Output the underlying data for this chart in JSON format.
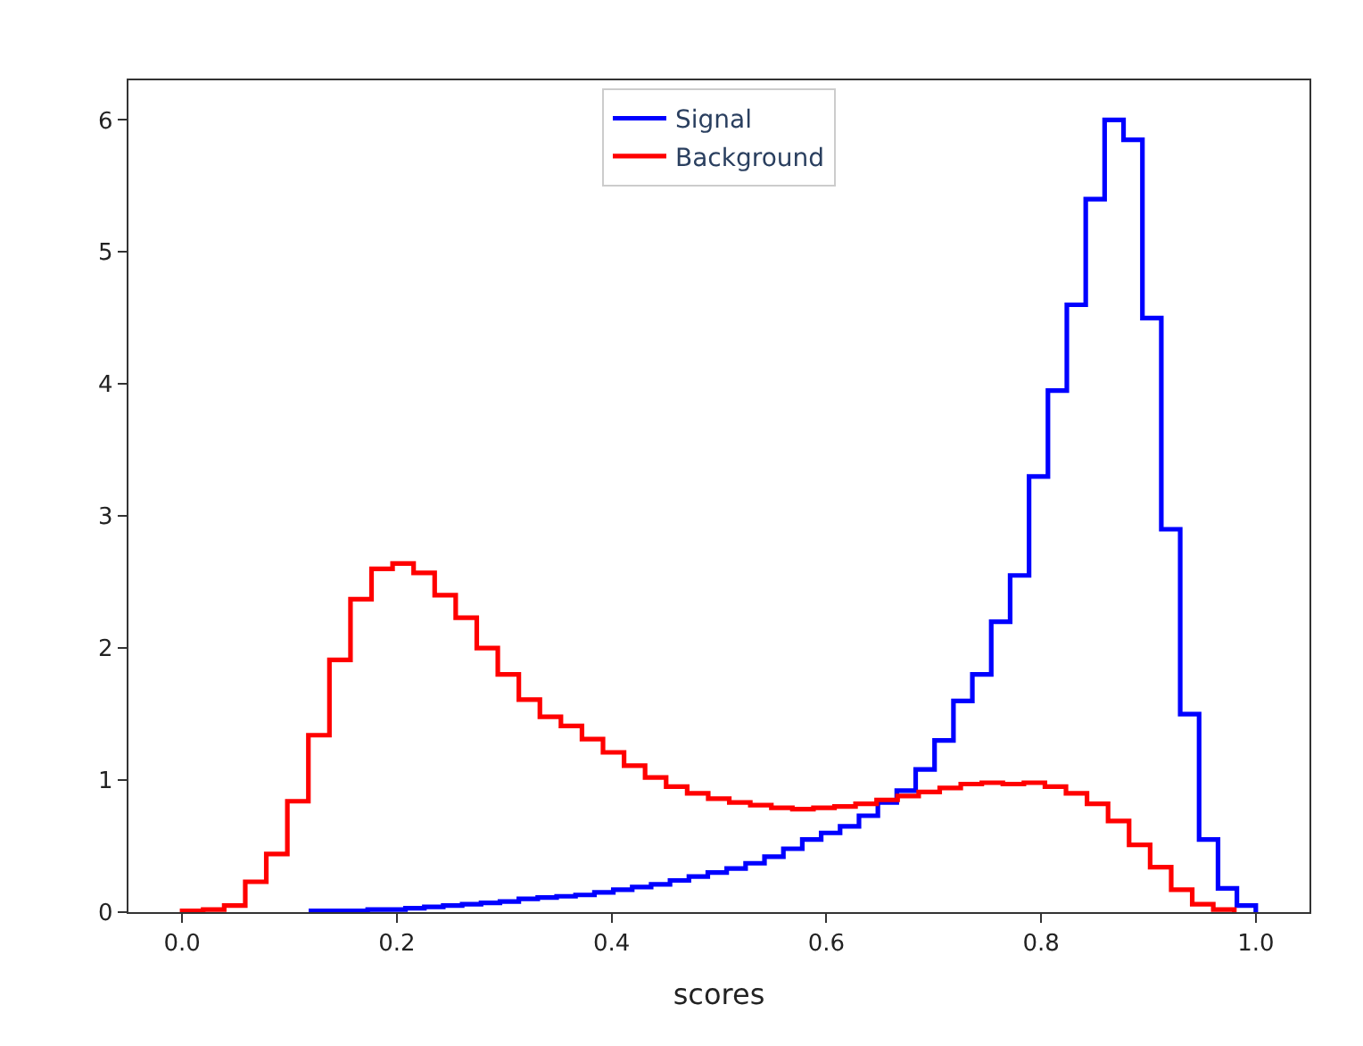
{
  "chart_data": {
    "type": "step",
    "xlabel": "scores",
    "legend": "top",
    "xlim": [
      -0.05,
      1.05
    ],
    "ylim": [
      0,
      6.3
    ],
    "xticks": [
      {
        "value": 0,
        "label": "0.0"
      },
      {
        "value": 0.2,
        "label": "0.2"
      },
      {
        "value": 0.4,
        "label": "0.4"
      },
      {
        "value": 0.6,
        "label": "0.6"
      },
      {
        "value": 0.8,
        "label": "0.8"
      },
      {
        "value": 1.0,
        "label": "1.0"
      }
    ],
    "yticks": [
      0,
      1,
      2,
      3,
      4,
      5,
      6
    ],
    "series": [
      {
        "name": "Signal",
        "color": "#0000ff",
        "x": [
          0.12,
          0.1376,
          0.1552,
          0.1728,
          0.1904,
          0.208,
          0.2256,
          0.2432,
          0.2608,
          0.2784,
          0.296,
          0.3136,
          0.3312,
          0.3488,
          0.3664,
          0.384,
          0.4016,
          0.4192,
          0.4368,
          0.4544,
          0.472,
          0.4896,
          0.5072,
          0.5248,
          0.5424,
          0.56,
          0.5776,
          0.5952,
          0.6128,
          0.6304,
          0.648,
          0.6656,
          0.6832,
          0.7008,
          0.7184,
          0.736,
          0.7536,
          0.7712,
          0.7888,
          0.8064,
          0.824,
          0.8416,
          0.8592,
          0.8768,
          0.8944,
          0.912,
          0.9296,
          0.9472,
          0.9648,
          0.9824,
          1.0
        ],
        "values": [
          0.01,
          0.01,
          0.01,
          0.02,
          0.02,
          0.03,
          0.04,
          0.05,
          0.06,
          0.07,
          0.08,
          0.1,
          0.11,
          0.12,
          0.13,
          0.15,
          0.17,
          0.19,
          0.21,
          0.24,
          0.27,
          0.3,
          0.33,
          0.37,
          0.42,
          0.48,
          0.55,
          0.6,
          0.65,
          0.73,
          0.83,
          0.92,
          1.08,
          1.3,
          1.6,
          1.8,
          2.2,
          2.55,
          3.3,
          3.95,
          4.6,
          5.4,
          6.0,
          5.85,
          4.5,
          2.9,
          1.5,
          0.55,
          0.18,
          0.05,
          0
        ]
      },
      {
        "name": "Background",
        "color": "#ff0000",
        "x": [
          0,
          0.0196,
          0.0392,
          0.0588,
          0.0784,
          0.098,
          0.1176,
          0.1372,
          0.1568,
          0.1764,
          0.196,
          0.2156,
          0.2352,
          0.2548,
          0.2744,
          0.294,
          0.3136,
          0.3332,
          0.3528,
          0.3724,
          0.392,
          0.4116,
          0.4312,
          0.4508,
          0.4704,
          0.49,
          0.5096,
          0.5292,
          0.5488,
          0.5684,
          0.588,
          0.6076,
          0.6272,
          0.6468,
          0.6664,
          0.686,
          0.7056,
          0.7252,
          0.7448,
          0.7644,
          0.784,
          0.8036,
          0.8232,
          0.8428,
          0.8624,
          0.882,
          0.9016,
          0.9212,
          0.9408,
          0.9604,
          0.98
        ],
        "values": [
          0.01,
          0.02,
          0.05,
          0.23,
          0.44,
          0.84,
          1.34,
          1.91,
          2.37,
          2.6,
          2.64,
          2.57,
          2.4,
          2.23,
          2.0,
          1.8,
          1.61,
          1.48,
          1.41,
          1.31,
          1.21,
          1.11,
          1.02,
          0.95,
          0.9,
          0.86,
          0.83,
          0.81,
          0.79,
          0.78,
          0.79,
          0.8,
          0.82,
          0.85,
          0.88,
          0.91,
          0.94,
          0.97,
          0.98,
          0.97,
          0.98,
          0.95,
          0.9,
          0.82,
          0.69,
          0.51,
          0.34,
          0.17,
          0.06,
          0.02,
          0
        ]
      }
    ]
  }
}
